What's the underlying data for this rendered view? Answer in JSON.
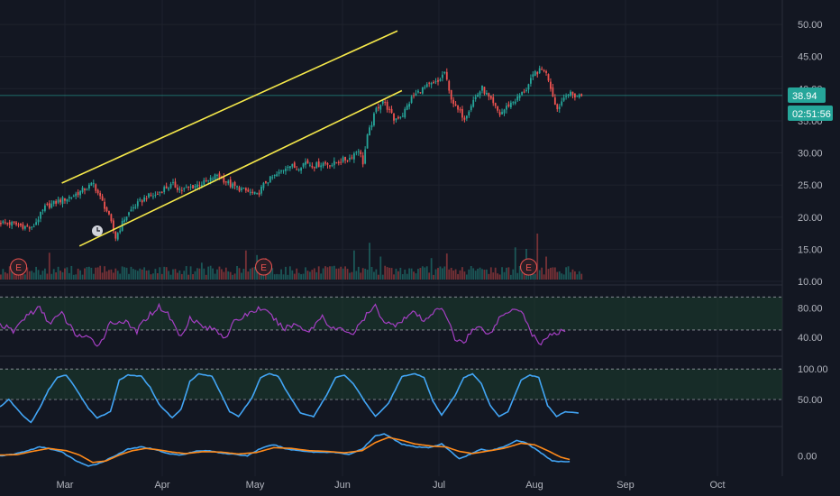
{
  "colors": {
    "background": "#131722",
    "grid": "#1e222d",
    "up": "#26a69a",
    "down": "#ef5350",
    "channel": "#f5e84a",
    "rsi_line": "#a53fc4",
    "stoch_line": "#42a5f5",
    "macd_line": "#42a5f5",
    "signal_line": "#ff8a1a",
    "band_fill": "#1b3a2d",
    "price_badge": "#26a69a"
  },
  "price_badge": {
    "price": "38.94",
    "countdown": "02:51:56"
  },
  "earnings_marker_label": "E",
  "chart_data": [
    {
      "type": "candlestick",
      "pane": "price",
      "x_axis": {
        "tick_labels": [
          "Mar",
          "Apr",
          "May",
          "Jun",
          "Jul",
          "Aug",
          "Sep",
          "Oct"
        ]
      },
      "y_axis": {
        "tick_labels": [
          "50.00",
          "45.00",
          "40.00",
          "35.00",
          "30.00",
          "25.00",
          "20.00",
          "15.00",
          "10.00"
        ],
        "ylim": [
          10,
          51
        ]
      },
      "last_price": 38.94,
      "channel_upper": [
        [
          25.3,
          28
        ],
        [
          49.0,
          180
        ]
      ],
      "channel_lower": [
        [
          15.5,
          36
        ],
        [
          39.7,
          182
        ]
      ],
      "close_path": [
        [
          0,
          19.2
        ],
        [
          8,
          18.8
        ],
        [
          14,
          18.2
        ],
        [
          20,
          21.5
        ],
        [
          26,
          22.5
        ],
        [
          32,
          23.2
        ],
        [
          38,
          24.4
        ],
        [
          42,
          25.2
        ],
        [
          45,
          23.0
        ],
        [
          48,
          21.0
        ],
        [
          50,
          19.0
        ],
        [
          52,
          16.8
        ],
        [
          56,
          19.8
        ],
        [
          60,
          21.5
        ],
        [
          66,
          23.2
        ],
        [
          70,
          23.4
        ],
        [
          74,
          24.5
        ],
        [
          78,
          25.0
        ],
        [
          82,
          24.2
        ],
        [
          88,
          24.9
        ],
        [
          94,
          25.6
        ],
        [
          98,
          26.6
        ],
        [
          104,
          25.0
        ],
        [
          110,
          24.2
        ],
        [
          116,
          23.4
        ],
        [
          120,
          25.5
        ],
        [
          126,
          26.8
        ],
        [
          130,
          28.2
        ],
        [
          134,
          27.6
        ],
        [
          138,
          28.6
        ],
        [
          142,
          28.0
        ],
        [
          146,
          28.4
        ],
        [
          150,
          28.2
        ],
        [
          154,
          28.8
        ],
        [
          158,
          29.2
        ],
        [
          162,
          30.6
        ],
        [
          164,
          28.5
        ],
        [
          166,
          32.5
        ],
        [
          170,
          36.8
        ],
        [
          173,
          38.2
        ],
        [
          176,
          36.5
        ],
        [
          178,
          35.2
        ],
        [
          182,
          36.0
        ],
        [
          186,
          38.5
        ],
        [
          190,
          39.8
        ],
        [
          194,
          40.5
        ],
        [
          198,
          41.0
        ],
        [
          201,
          42.6
        ],
        [
          203,
          39.5
        ],
        [
          206,
          37.0
        ],
        [
          210,
          35.5
        ],
        [
          214,
          38.2
        ],
        [
          218,
          40.1
        ],
        [
          222,
          38.0
        ],
        [
          226,
          36.0
        ],
        [
          230,
          37.5
        ],
        [
          234,
          38.5
        ],
        [
          238,
          40.0
        ],
        [
          242,
          42.5
        ],
        [
          246,
          43.0
        ],
        [
          248,
          41.5
        ],
        [
          250,
          39.0
        ],
        [
          252,
          36.8
        ],
        [
          256,
          39.3
        ],
        [
          260,
          38.9
        ],
        [
          263,
          38.94
        ]
      ],
      "volume_ylim": [
        0,
        100
      ],
      "volume_spikes": [
        [
          22,
          35
        ],
        [
          45,
          18
        ],
        [
          60,
          14
        ],
        [
          91,
          22
        ],
        [
          111,
          38
        ],
        [
          116,
          32
        ],
        [
          120,
          28
        ],
        [
          160,
          38
        ],
        [
          167,
          48
        ],
        [
          172,
          30
        ],
        [
          195,
          28
        ],
        [
          202,
          34
        ],
        [
          222,
          16
        ],
        [
          233,
          42
        ],
        [
          238,
          40
        ],
        [
          243,
          60
        ],
        [
          247,
          30
        ]
      ],
      "earnings_events": [
        [
          8,
          "E"
        ],
        [
          119,
          "E"
        ],
        [
          239,
          "E"
        ]
      ],
      "n_bars": 264
    },
    {
      "type": "line",
      "pane": "rsi",
      "y_axis": {
        "tick_labels": [
          "80.00",
          "40.00"
        ],
        "ylim": [
          18,
          104
        ]
      },
      "band": [
        50,
        95
      ],
      "series": [
        {
          "values_path": [
            [
              0,
              58
            ],
            [
              6,
              48
            ],
            [
              12,
              70
            ],
            [
              18,
              80
            ],
            [
              22,
              60
            ],
            [
              28,
              72
            ],
            [
              34,
              45
            ],
            [
              40,
              38
            ],
            [
              45,
              30
            ],
            [
              50,
              60
            ],
            [
              56,
              62
            ],
            [
              62,
              48
            ],
            [
              66,
              66
            ],
            [
              72,
              82
            ],
            [
              76,
              72
            ],
            [
              82,
              40
            ],
            [
              86,
              68
            ],
            [
              92,
              54
            ],
            [
              98,
              50
            ],
            [
              102,
              40
            ],
            [
              106,
              60
            ],
            [
              112,
              72
            ],
            [
              118,
              80
            ],
            [
              124,
              66
            ],
            [
              128,
              52
            ],
            [
              134,
              58
            ],
            [
              140,
              48
            ],
            [
              146,
              70
            ],
            [
              150,
              52
            ],
            [
              156,
              50
            ],
            [
              160,
              45
            ],
            [
              166,
              70
            ],
            [
              170,
              82
            ],
            [
              174,
              62
            ],
            [
              178,
              56
            ],
            [
              184,
              68
            ],
            [
              188,
              74
            ],
            [
              192,
              60
            ],
            [
              198,
              82
            ],
            [
              202,
              70
            ],
            [
              206,
              38
            ],
            [
              210,
              34
            ],
            [
              214,
              50
            ],
            [
              218,
              54
            ],
            [
              222,
              44
            ],
            [
              226,
              66
            ],
            [
              232,
              80
            ],
            [
              236,
              78
            ],
            [
              240,
              50
            ],
            [
              244,
              30
            ],
            [
              248,
              42
            ],
            [
              252,
              44
            ],
            [
              256,
              50
            ]
          ]
        }
      ]
    },
    {
      "type": "line",
      "pane": "stochastic",
      "y_axis": {
        "tick_labels": [
          "100.00",
          "50.00"
        ],
        "ylim": [
          10,
          118
        ]
      },
      "band": [
        50,
        100
      ],
      "series": [
        {
          "values_path": [
            [
              0,
              38
            ],
            [
              4,
              50
            ],
            [
              10,
              25
            ],
            [
              14,
              12
            ],
            [
              18,
              36
            ],
            [
              22,
              66
            ],
            [
              26,
              86
            ],
            [
              30,
              90
            ],
            [
              34,
              70
            ],
            [
              40,
              35
            ],
            [
              44,
              20
            ],
            [
              50,
              30
            ],
            [
              54,
              82
            ],
            [
              58,
              90
            ],
            [
              64,
              88
            ],
            [
              68,
              70
            ],
            [
              72,
              42
            ],
            [
              78,
              20
            ],
            [
              82,
              34
            ],
            [
              86,
              80
            ],
            [
              90,
              92
            ],
            [
              96,
              88
            ],
            [
              100,
              60
            ],
            [
              104,
              30
            ],
            [
              108,
              22
            ],
            [
              114,
              52
            ],
            [
              118,
              86
            ],
            [
              122,
              92
            ],
            [
              126,
              88
            ],
            [
              130,
              62
            ],
            [
              136,
              28
            ],
            [
              142,
              22
            ],
            [
              148,
              58
            ],
            [
              152,
              86
            ],
            [
              156,
              90
            ],
            [
              160,
              76
            ],
            [
              166,
              42
            ],
            [
              170,
              22
            ],
            [
              176,
              44
            ],
            [
              182,
              88
            ],
            [
              188,
              92
            ],
            [
              192,
              86
            ],
            [
              196,
              48
            ],
            [
              200,
              24
            ],
            [
              206,
              56
            ],
            [
              210,
              86
            ],
            [
              214,
              92
            ],
            [
              218,
              76
            ],
            [
              222,
              40
            ],
            [
              226,
              22
            ],
            [
              230,
              30
            ],
            [
              236,
              82
            ],
            [
              240,
              90
            ],
            [
              244,
              86
            ],
            [
              248,
              40
            ],
            [
              252,
              22
            ],
            [
              256,
              30
            ],
            [
              262,
              28
            ]
          ]
        }
      ]
    },
    {
      "type": "line",
      "pane": "macd",
      "y_axis": {
        "tick_labels": [
          "0.00"
        ],
        "ylim": [
          -1.2,
          1.8
        ]
      },
      "series": [
        {
          "values_path": [
            [
              0,
              0.0
            ],
            [
              6,
              0.1
            ],
            [
              12,
              0.32
            ],
            [
              18,
              0.6
            ],
            [
              22,
              0.5
            ],
            [
              28,
              0.25
            ],
            [
              34,
              -0.3
            ],
            [
              40,
              -0.72
            ],
            [
              46,
              -0.45
            ],
            [
              52,
              0.0
            ],
            [
              58,
              0.45
            ],
            [
              64,
              0.6
            ],
            [
              70,
              0.45
            ],
            [
              76,
              0.15
            ],
            [
              82,
              0.05
            ],
            [
              88,
              0.3
            ],
            [
              94,
              0.35
            ],
            [
              100,
              0.2
            ],
            [
              106,
              0.1
            ],
            [
              112,
              0.0
            ],
            [
              118,
              0.5
            ],
            [
              124,
              0.75
            ],
            [
              130,
              0.45
            ],
            [
              136,
              0.35
            ],
            [
              142,
              0.25
            ],
            [
              150,
              0.25
            ],
            [
              158,
              0.1
            ],
            [
              164,
              0.45
            ],
            [
              170,
              1.35
            ],
            [
              174,
              1.5
            ],
            [
              178,
              1.15
            ],
            [
              182,
              0.8
            ],
            [
              188,
              0.6
            ],
            [
              194,
              0.55
            ],
            [
              200,
              0.8
            ],
            [
              204,
              0.3
            ],
            [
              208,
              -0.2
            ],
            [
              212,
              0.05
            ],
            [
              218,
              0.45
            ],
            [
              222,
              0.35
            ],
            [
              228,
              0.6
            ],
            [
              234,
              1.05
            ],
            [
              238,
              0.9
            ],
            [
              242,
              0.5
            ],
            [
              246,
              0.1
            ],
            [
              250,
              -0.35
            ],
            [
              254,
              -0.4
            ],
            [
              258,
              -0.38
            ]
          ]
        },
        {
          "values_path": [
            [
              0,
              0.05
            ],
            [
              8,
              0.08
            ],
            [
              14,
              0.28
            ],
            [
              22,
              0.5
            ],
            [
              30,
              0.35
            ],
            [
              36,
              0.05
            ],
            [
              42,
              -0.45
            ],
            [
              48,
              -0.35
            ],
            [
              54,
              0.05
            ],
            [
              60,
              0.35
            ],
            [
              66,
              0.5
            ],
            [
              72,
              0.4
            ],
            [
              78,
              0.25
            ],
            [
              84,
              0.15
            ],
            [
              92,
              0.28
            ],
            [
              100,
              0.25
            ],
            [
              108,
              0.12
            ],
            [
              116,
              0.22
            ],
            [
              124,
              0.55
            ],
            [
              132,
              0.5
            ],
            [
              140,
              0.35
            ],
            [
              148,
              0.3
            ],
            [
              156,
              0.2
            ],
            [
              164,
              0.35
            ],
            [
              170,
              0.9
            ],
            [
              176,
              1.25
            ],
            [
              182,
              1.05
            ],
            [
              188,
              0.8
            ],
            [
              196,
              0.65
            ],
            [
              202,
              0.6
            ],
            [
              208,
              0.3
            ],
            [
              214,
              0.15
            ],
            [
              220,
              0.3
            ],
            [
              228,
              0.5
            ],
            [
              236,
              0.85
            ],
            [
              242,
              0.75
            ],
            [
              248,
              0.35
            ],
            [
              254,
              -0.1
            ],
            [
              258,
              -0.25
            ]
          ]
        }
      ]
    }
  ]
}
